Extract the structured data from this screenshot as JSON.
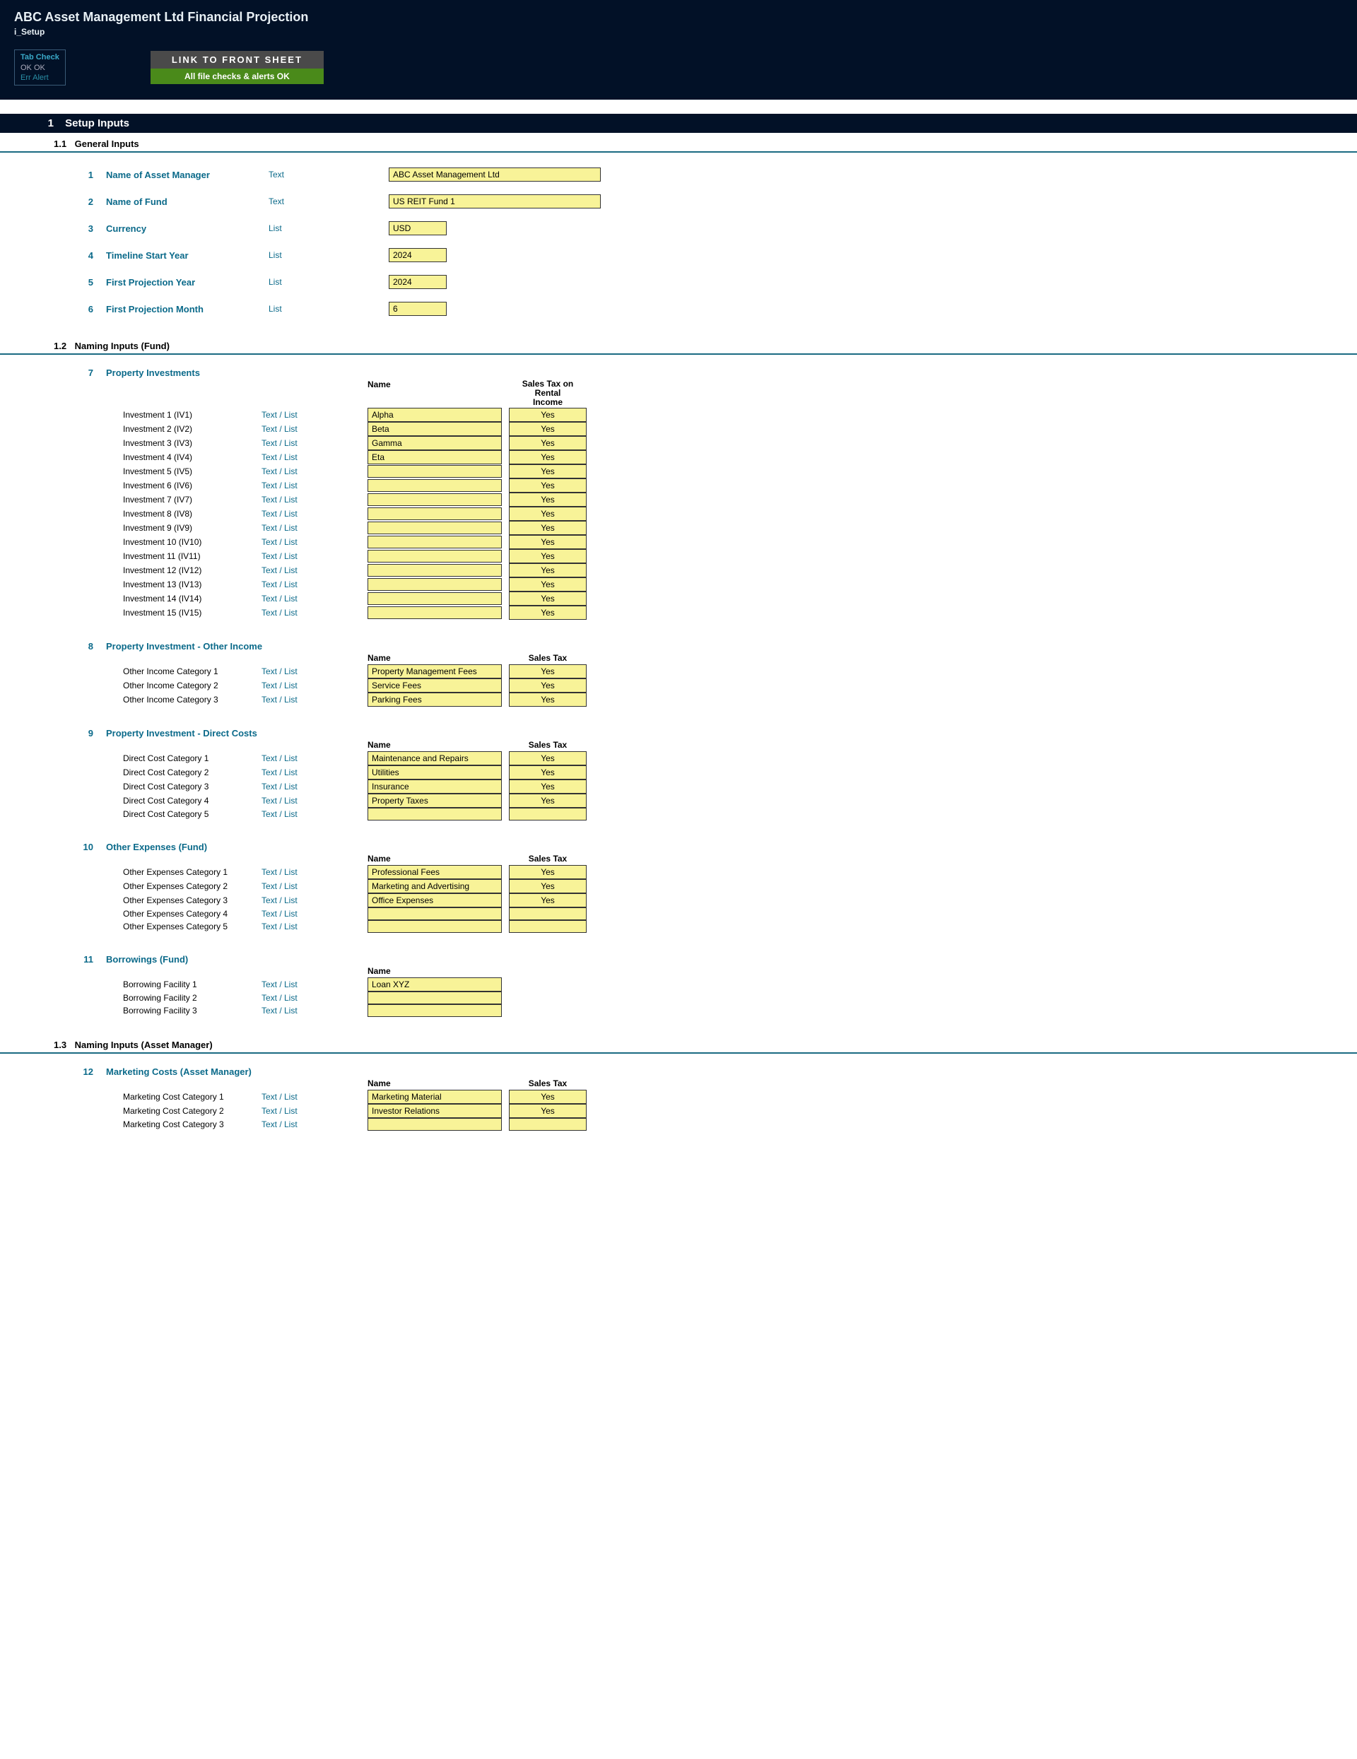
{
  "header": {
    "title": "ABC Asset Management Ltd Financial Projection",
    "subtitle": "i_Setup",
    "tab_check": {
      "title": "Tab Check",
      "ok_line": "OK   OK",
      "err_line": "Err   Alert"
    },
    "link_front": "LINK TO FRONT SHEET",
    "link_status": "All file checks & alerts OK"
  },
  "section1": {
    "num": "1",
    "title": "Setup Inputs"
  },
  "s11": {
    "num": "1.1",
    "title": "General Inputs",
    "rows": [
      {
        "n": "1",
        "label": "Name of Asset Manager",
        "type": "Text",
        "value": "ABC Asset Management Ltd",
        "wide": true
      },
      {
        "n": "2",
        "label": "Name of Fund",
        "type": "Text",
        "value": "US REIT Fund 1",
        "wide": true
      },
      {
        "n": "3",
        "label": "Currency",
        "type": "List",
        "value": "USD",
        "wide": false
      },
      {
        "n": "4",
        "label": "Timeline Start Year",
        "type": "List",
        "value": "2024",
        "wide": false
      },
      {
        "n": "5",
        "label": "First Projection Year",
        "type": "List",
        "value": "2024",
        "wide": false
      },
      {
        "n": "6",
        "label": "First Projection Month",
        "type": "List",
        "value": "6",
        "wide": false
      }
    ]
  },
  "s12": {
    "num": "1.2",
    "title": "Naming Inputs (Fund)",
    "blocks": [
      {
        "n": "7",
        "title": "Property Investments",
        "col1": "Name",
        "col2_l1": "Sales Tax on Rental",
        "col2_l2": "Income",
        "col2_twoline": true,
        "items": [
          {
            "label": "Investment 1 (IV1)",
            "type": "Text / List",
            "name": "Alpha",
            "tax": "Yes"
          },
          {
            "label": "Investment 2 (IV2)",
            "type": "Text / List",
            "name": "Beta",
            "tax": "Yes"
          },
          {
            "label": "Investment 3 (IV3)",
            "type": "Text / List",
            "name": "Gamma",
            "tax": "Yes"
          },
          {
            "label": "Investment 4 (IV4)",
            "type": "Text / List",
            "name": "Eta",
            "tax": "Yes"
          },
          {
            "label": "Investment 5 (IV5)",
            "type": "Text / List",
            "name": "",
            "tax": "Yes"
          },
          {
            "label": "Investment 6 (IV6)",
            "type": "Text / List",
            "name": "",
            "tax": "Yes"
          },
          {
            "label": "Investment 7 (IV7)",
            "type": "Text / List",
            "name": "",
            "tax": "Yes"
          },
          {
            "label": "Investment 8 (IV8)",
            "type": "Text / List",
            "name": "",
            "tax": "Yes"
          },
          {
            "label": "Investment 9 (IV9)",
            "type": "Text / List",
            "name": "",
            "tax": "Yes"
          },
          {
            "label": "Investment 10 (IV10)",
            "type": "Text / List",
            "name": "",
            "tax": "Yes"
          },
          {
            "label": "Investment 11 (IV11)",
            "type": "Text / List",
            "name": "",
            "tax": "Yes"
          },
          {
            "label": "Investment 12 (IV12)",
            "type": "Text / List",
            "name": "",
            "tax": "Yes"
          },
          {
            "label": "Investment 13 (IV13)",
            "type": "Text / List",
            "name": "",
            "tax": "Yes"
          },
          {
            "label": "Investment 14 (IV14)",
            "type": "Text / List",
            "name": "",
            "tax": "Yes"
          },
          {
            "label": "Investment 15 (IV15)",
            "type": "Text / List",
            "name": "",
            "tax": "Yes"
          }
        ]
      },
      {
        "n": "8",
        "title": "Property Investment - Other Income",
        "col1": "Name",
        "col2": "Sales Tax",
        "items": [
          {
            "label": "Other Income Category 1",
            "type": "Text / List",
            "name": "Property Management Fees",
            "tax": "Yes"
          },
          {
            "label": "Other Income Category 2",
            "type": "Text / List",
            "name": "Service Fees",
            "tax": "Yes"
          },
          {
            "label": "Other Income Category 3",
            "type": "Text / List",
            "name": "Parking Fees",
            "tax": "Yes"
          }
        ]
      },
      {
        "n": "9",
        "title": "Property Investment - Direct Costs",
        "col1": "Name",
        "col2": "Sales Tax",
        "items": [
          {
            "label": "Direct Cost Category 1",
            "type": "Text / List",
            "name": "Maintenance and Repairs",
            "tax": "Yes"
          },
          {
            "label": "Direct Cost Category 2",
            "type": "Text / List",
            "name": "Utilities",
            "tax": "Yes"
          },
          {
            "label": "Direct Cost Category 3",
            "type": "Text / List",
            "name": "Insurance",
            "tax": "Yes"
          },
          {
            "label": "Direct Cost Category 4",
            "type": "Text / List",
            "name": "Property Taxes",
            "tax": "Yes"
          },
          {
            "label": "Direct Cost Category 5",
            "type": "Text / List",
            "name": "",
            "tax": ""
          }
        ]
      },
      {
        "n": "10",
        "title": "Other Expenses (Fund)",
        "col1": "Name",
        "col2": "Sales Tax",
        "items": [
          {
            "label": "Other Expenses Category 1",
            "type": "Text / List",
            "name": "Professional Fees",
            "tax": "Yes"
          },
          {
            "label": "Other Expenses Category 2",
            "type": "Text / List",
            "name": "Marketing and Advertising",
            "tax": "Yes"
          },
          {
            "label": "Other Expenses Category 3",
            "type": "Text / List",
            "name": "Office Expenses",
            "tax": "Yes"
          },
          {
            "label": "Other Expenses Category 4",
            "type": "Text / List",
            "name": "",
            "tax": ""
          },
          {
            "label": "Other Expenses Category 5",
            "type": "Text / List",
            "name": "",
            "tax": ""
          }
        ]
      },
      {
        "n": "11",
        "title": "Borrowings (Fund)",
        "col1": "Name",
        "no_col2": true,
        "items": [
          {
            "label": "Borrowing Facility 1",
            "type": "Text / List",
            "name": "Loan XYZ"
          },
          {
            "label": "Borrowing Facility 2",
            "type": "Text / List",
            "name": ""
          },
          {
            "label": "Borrowing Facility 3",
            "type": "Text / List",
            "name": ""
          }
        ]
      }
    ]
  },
  "s13": {
    "num": "1.3",
    "title": "Naming Inputs (Asset Manager)",
    "blocks": [
      {
        "n": "12",
        "title": "Marketing Costs (Asset Manager)",
        "col1": "Name",
        "col2": "Sales Tax",
        "items": [
          {
            "label": "Marketing Cost Category 1",
            "type": "Text / List",
            "name": "Marketing Material",
            "tax": "Yes"
          },
          {
            "label": "Marketing Cost Category 2",
            "type": "Text / List",
            "name": "Investor Relations",
            "tax": "Yes"
          },
          {
            "label": "Marketing Cost Category 3",
            "type": "Text / List",
            "name": "",
            "tax": ""
          }
        ]
      }
    ]
  }
}
